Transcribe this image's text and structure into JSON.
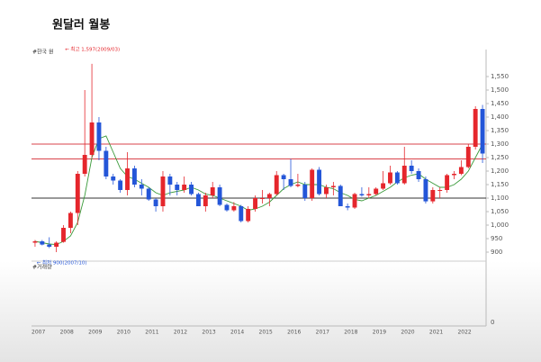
{
  "chart_data": {
    "type": "candlestick",
    "title": "원달러 월봉",
    "subtitle": "#한국 원",
    "categories": [
      "2007",
      null,
      null,
      null,
      "2008",
      null,
      null,
      null,
      "2009",
      null,
      null,
      null,
      "2010",
      null,
      null,
      null,
      "2011",
      null,
      null,
      null,
      "2012",
      null,
      null,
      null,
      "2013",
      null,
      null,
      null,
      "2014",
      null,
      null,
      null,
      "2015",
      null,
      null,
      null,
      "2016",
      null,
      null,
      null,
      "2017",
      null,
      null,
      null,
      "2018",
      null,
      null,
      null,
      "2019",
      null,
      null,
      null,
      "2020",
      null,
      null,
      null,
      "2021",
      null,
      null,
      null,
      "2022",
      null,
      null,
      null
    ],
    "open": [
      935,
      940,
      928,
      920,
      938,
      990,
      1045,
      1190,
      1260,
      1380,
      1275,
      1180,
      1165,
      1130,
      1210,
      1150,
      1135,
      1095,
      1070,
      1180,
      1150,
      1130,
      1150,
      1115,
      1070,
      1110,
      1140,
      1075,
      1055,
      1070,
      1015,
      1060,
      1100,
      1100,
      1115,
      1185,
      1170,
      1145,
      1150,
      1100,
      1205,
      1115,
      1140,
      1145,
      1070,
      1065,
      1115,
      1110,
      1115,
      1135,
      1155,
      1195,
      1155,
      1220,
      1200,
      1170,
      1088,
      1130,
      1130,
      1185,
      1190,
      1215,
      1290,
      1430
    ],
    "high": [
      945,
      945,
      955,
      940,
      1000,
      1050,
      1200,
      1500,
      1597,
      1400,
      1290,
      1190,
      1170,
      1270,
      1220,
      1170,
      1140,
      1100,
      1200,
      1190,
      1160,
      1180,
      1160,
      1120,
      1120,
      1160,
      1150,
      1080,
      1085,
      1075,
      1070,
      1110,
      1130,
      1120,
      1200,
      1190,
      1245,
      1190,
      1160,
      1210,
      1215,
      1150,
      1160,
      1150,
      1080,
      1120,
      1140,
      1140,
      1140,
      1200,
      1220,
      1200,
      1290,
      1240,
      1210,
      1180,
      1140,
      1140,
      1190,
      1200,
      1240,
      1300,
      1440,
      1445
    ],
    "low": [
      920,
      925,
      915,
      900,
      935,
      970,
      1000,
      1180,
      1250,
      1240,
      1170,
      1150,
      1120,
      1110,
      1140,
      1110,
      1090,
      1050,
      1050,
      1110,
      1110,
      1120,
      1110,
      1070,
      1050,
      1100,
      1070,
      1050,
      1050,
      1010,
      1010,
      1050,
      1080,
      1070,
      1110,
      1130,
      1140,
      1140,
      1090,
      1090,
      1110,
      1100,
      1110,
      1070,
      1055,
      1060,
      1105,
      1100,
      1110,
      1130,
      1150,
      1150,
      1150,
      1190,
      1160,
      1080,
      1080,
      1100,
      1120,
      1170,
      1185,
      1210,
      1280,
      1230
    ],
    "close": [
      940,
      928,
      920,
      935,
      990,
      1045,
      1190,
      1260,
      1380,
      1275,
      1180,
      1165,
      1130,
      1210,
      1150,
      1135,
      1095,
      1070,
      1180,
      1150,
      1130,
      1150,
      1115,
      1070,
      1110,
      1140,
      1075,
      1055,
      1070,
      1015,
      1060,
      1100,
      1100,
      1115,
      1185,
      1170,
      1145,
      1150,
      1100,
      1205,
      1115,
      1140,
      1145,
      1070,
      1065,
      1115,
      1110,
      1115,
      1135,
      1155,
      1195,
      1155,
      1220,
      1200,
      1170,
      1088,
      1130,
      1130,
      1185,
      1190,
      1215,
      1290,
      1430,
      1265
    ],
    "up_color": "#e5262c",
    "down_color": "#2456d8",
    "lines": [
      {
        "color": "#3a9a3a",
        "values": [
          940,
          935,
          930,
          928,
          940,
          960,
          1010,
          1110,
          1250,
          1320,
          1330,
          1270,
          1210,
          1180,
          1170,
          1155,
          1140,
          1120,
          1110,
          1120,
          1125,
          1130,
          1140,
          1130,
          1115,
          1110,
          1100,
          1090,
          1080,
          1070,
          1055,
          1060,
          1070,
          1085,
          1110,
          1135,
          1150,
          1160,
          1150,
          1150,
          1150,
          1140,
          1135,
          1120,
          1110,
          1095,
          1090,
          1100,
          1110,
          1125,
          1140,
          1160,
          1175,
          1185,
          1190,
          1170,
          1155,
          1140,
          1140,
          1150,
          1170,
          1200,
          1250,
          1300
        ]
      }
    ],
    "hlines": [
      {
        "value": 1300,
        "color": "#d9434b"
      },
      {
        "value": 1245,
        "color": "#d9434b"
      },
      {
        "value": 1100,
        "color": "#333333"
      }
    ],
    "annotations": [
      {
        "text": "← 최고 1,597(2009/03)",
        "color": "#e5262c"
      },
      {
        "text": "← 최저 900(2007/10)",
        "color": "#2456d8"
      }
    ],
    "volume_label": "#거래량",
    "volume_zero": "0",
    "ylim": [
      880,
      1600
    ],
    "yticks": [
      900,
      950,
      {
        "value": 1000,
        "label": "1,000"
      },
      {
        "value": 1050,
        "label": "1,050"
      },
      {
        "value": 1100,
        "label": "1,100"
      },
      {
        "value": 1150,
        "label": "1,150"
      },
      {
        "value": 1200,
        "label": "1,200"
      },
      {
        "value": 1250,
        "label": "1,250"
      },
      {
        "value": 1300,
        "label": "1,300"
      },
      {
        "value": 1350,
        "label": "1,350"
      },
      {
        "value": 1400,
        "label": "1,400"
      },
      {
        "value": 1450,
        "label": "1,450"
      },
      {
        "value": 1500,
        "label": "1,500"
      },
      {
        "value": 1550,
        "label": "1,550"
      }
    ]
  }
}
